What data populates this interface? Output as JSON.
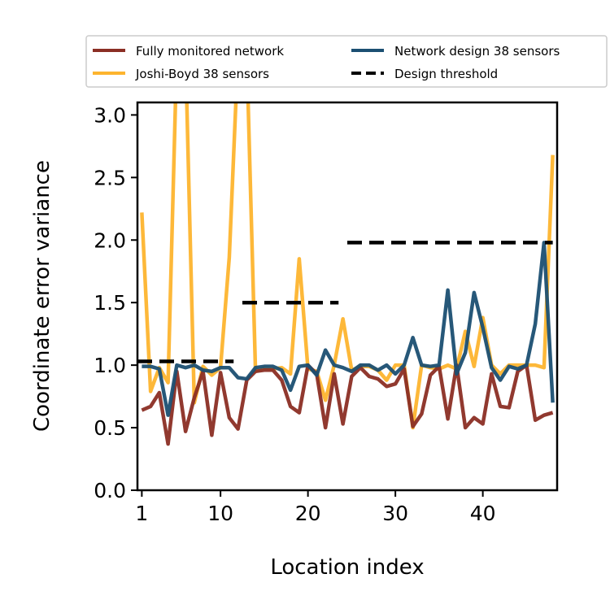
{
  "chart_data": {
    "type": "line",
    "title": "",
    "xlabel": "Location index",
    "ylabel": "Coordinate error variance",
    "xlim": [
      0.5,
      48.5
    ],
    "ylim": [
      0.0,
      3.1
    ],
    "xticks": [
      1,
      10,
      20,
      30,
      40
    ],
    "yticks": [
      0.0,
      0.5,
      1.0,
      1.5,
      2.0,
      2.5,
      3.0
    ],
    "xtick_labels": [
      "1",
      "10",
      "20",
      "30",
      "40"
    ],
    "ytick_labels": [
      "0.0",
      "0.5",
      "1.0",
      "1.5",
      "2.0",
      "2.5",
      "3.0"
    ],
    "grid": false,
    "legend": {
      "placement": "top, above plot",
      "entries": [
        {
          "label": "Fully monitored network",
          "color": "#8B2E24",
          "style": "solid"
        },
        {
          "label": "Network design 38 sensors",
          "color": "#1B4F72",
          "style": "solid"
        },
        {
          "label": "Joshi-Boyd 38 sensors",
          "color": "#FDB42E",
          "style": "solid"
        },
        {
          "label": "Design threshold",
          "color": "#000000",
          "style": "dashed"
        }
      ]
    },
    "series": [
      {
        "name": "Joshi-Boyd 38 sensors",
        "color": "#FDB42E",
        "x": [
          1,
          2,
          3,
          4,
          5,
          6,
          7,
          8,
          9,
          10,
          11,
          12,
          13,
          14,
          15,
          16,
          17,
          18,
          19,
          20,
          21,
          22,
          23,
          24,
          25,
          26,
          27,
          28,
          29,
          30,
          31,
          32,
          33,
          34,
          35,
          36,
          37,
          38,
          39,
          40,
          41,
          42,
          43,
          44,
          45,
          46,
          47,
          48
        ],
        "values": [
          2.22,
          0.79,
          0.98,
          0.86,
          3.5,
          3.5,
          0.7,
          0.99,
          0.92,
          0.98,
          1.86,
          3.5,
          3.5,
          0.95,
          0.98,
          0.97,
          0.98,
          0.93,
          1.85,
          0.97,
          0.95,
          0.72,
          1.0,
          1.37,
          0.96,
          0.99,
          0.99,
          0.96,
          0.88,
          1.0,
          1.0,
          0.5,
          1.0,
          0.98,
          0.97,
          1.0,
          0.97,
          1.27,
          0.99,
          1.38,
          1.0,
          0.93,
          1.0,
          1.0,
          1.0,
          1.0,
          0.98,
          2.68
        ]
      },
      {
        "name": "Fully monitored network",
        "color": "#8B2E24",
        "x": [
          1,
          2,
          3,
          4,
          5,
          6,
          7,
          8,
          9,
          10,
          11,
          12,
          13,
          14,
          15,
          16,
          17,
          18,
          19,
          20,
          21,
          22,
          23,
          24,
          25,
          26,
          27,
          28,
          29,
          30,
          31,
          32,
          33,
          34,
          35,
          36,
          37,
          38,
          39,
          40,
          41,
          42,
          43,
          44,
          45,
          46,
          47,
          48
        ],
        "values": [
          0.64,
          0.67,
          0.78,
          0.37,
          0.95,
          0.47,
          0.74,
          0.95,
          0.44,
          0.94,
          0.58,
          0.49,
          0.88,
          0.95,
          0.96,
          0.96,
          0.88,
          0.67,
          0.62,
          1.0,
          0.93,
          0.5,
          0.93,
          0.53,
          0.91,
          0.98,
          0.91,
          0.89,
          0.83,
          0.85,
          0.97,
          0.51,
          0.61,
          0.92,
          0.99,
          0.57,
          1.0,
          0.5,
          0.58,
          0.53,
          0.93,
          0.67,
          0.66,
          0.95,
          1.0,
          0.56,
          0.6,
          0.62
        ]
      },
      {
        "name": "Network design 38 sensors",
        "color": "#1B4F72",
        "x": [
          1,
          2,
          3,
          4,
          5,
          6,
          7,
          8,
          9,
          10,
          11,
          12,
          13,
          14,
          15,
          16,
          17,
          18,
          19,
          20,
          21,
          22,
          23,
          24,
          25,
          26,
          27,
          28,
          29,
          30,
          31,
          32,
          33,
          34,
          35,
          36,
          37,
          38,
          39,
          40,
          41,
          42,
          43,
          44,
          45,
          46,
          47,
          48
        ],
        "values": [
          0.99,
          0.99,
          0.97,
          0.6,
          1.0,
          0.98,
          1.0,
          0.96,
          0.95,
          0.98,
          0.98,
          0.9,
          0.89,
          0.98,
          0.99,
          0.99,
          0.96,
          0.8,
          0.99,
          1.0,
          0.92,
          1.12,
          1.0,
          0.98,
          0.95,
          1.0,
          1.0,
          0.96,
          1.0,
          0.93,
          1.0,
          1.22,
          1.0,
          0.99,
          1.0,
          1.6,
          0.93,
          1.1,
          1.58,
          1.3,
          0.98,
          0.88,
          0.99,
          0.97,
          1.0,
          1.33,
          1.98,
          0.7
        ]
      }
    ],
    "thresholds": [
      {
        "name": "Design threshold",
        "x0": 0.5,
        "x1": 11.5,
        "y": 1.03
      },
      {
        "name": "Design threshold",
        "x0": 12.5,
        "x1": 23.5,
        "y": 1.5
      },
      {
        "name": "Design threshold",
        "x0": 24.5,
        "x1": 48.0,
        "y": 1.98
      }
    ]
  }
}
